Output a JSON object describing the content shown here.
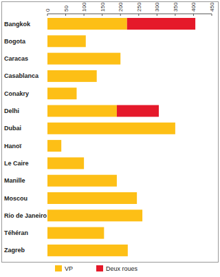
{
  "chart_data": {
    "type": "bar",
    "orientation": "horizontal",
    "stacked": true,
    "grid": false,
    "legend": "bottom",
    "categories": [
      "Bangkok",
      "Bogota",
      "Caracas",
      "Casablanca",
      "Conakry",
      "Delhi",
      "Dubai",
      "Hanoï",
      "Le Caire",
      "Manille",
      "Moscou",
      "Rio de Janeiro",
      "Téhéran",
      "Zagreb"
    ],
    "series": [
      {
        "name": "VP",
        "color": "#fdbf16",
        "values": [
          218,
          105,
          200,
          135,
          80,
          190,
          350,
          38,
          100,
          190,
          245,
          260,
          155,
          220
        ]
      },
      {
        "name": "Deux roues",
        "color": "#e5192a",
        "values": [
          187,
          null,
          null,
          null,
          null,
          115,
          null,
          null,
          null,
          null,
          null,
          null,
          null,
          null
        ]
      }
    ],
    "ylim": [
      0,
      450
    ],
    "yticks": [
      0,
      50,
      100,
      150,
      200,
      250,
      300,
      350,
      400,
      450
    ]
  }
}
